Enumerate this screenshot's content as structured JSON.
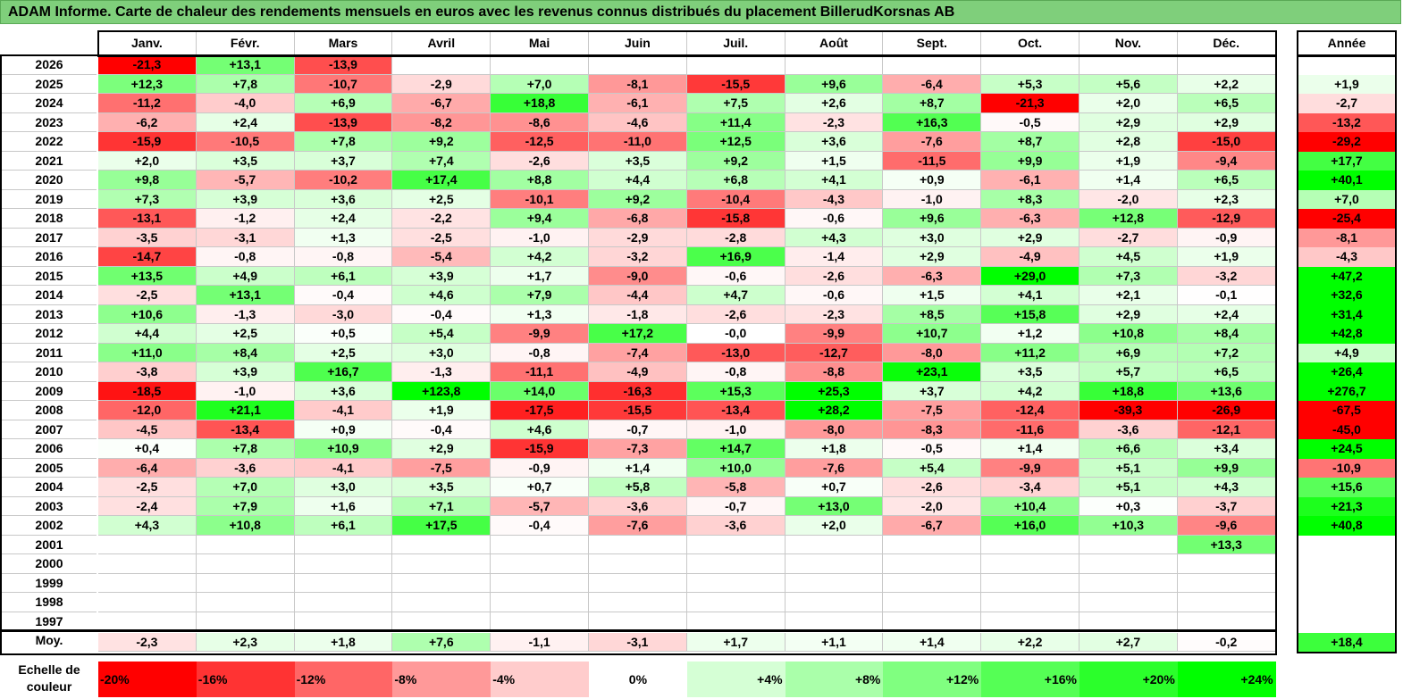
{
  "title": "ADAM Informe. Carte de chaleur des rendements mensuels en euros avec les revenus connus distribués du placement BillerudKorsnas AB",
  "chart_data": {
    "type": "heatmap",
    "months": [
      "Janv.",
      "Févr.",
      "Mars",
      "Avril",
      "Mai",
      "Juin",
      "Juil.",
      "Août",
      "Sept.",
      "Oct.",
      "Nov.",
      "Déc."
    ],
    "year_header": "Année",
    "rows": [
      {
        "year": "2026",
        "values": [
          "-21,3",
          "+13,1",
          "-13,9",
          "",
          "",
          "",
          "",
          "",
          "",
          "",
          "",
          ""
        ],
        "annual": ""
      },
      {
        "year": "2025",
        "values": [
          "+12,3",
          "+7,8",
          "-10,7",
          "-2,9",
          "+7,0",
          "-8,1",
          "-15,5",
          "+9,6",
          "-6,4",
          "+5,3",
          "+5,6",
          "+2,2"
        ],
        "annual": "+1,9"
      },
      {
        "year": "2024",
        "values": [
          "-11,2",
          "-4,0",
          "+6,9",
          "-6,7",
          "+18,8",
          "-6,1",
          "+7,5",
          "+2,6",
          "+8,7",
          "-21,3",
          "+2,0",
          "+6,5"
        ],
        "annual": "-2,7"
      },
      {
        "year": "2023",
        "values": [
          "-6,2",
          "+2,4",
          "-13,9",
          "-8,2",
          "-8,6",
          "-4,6",
          "+11,4",
          "-2,3",
          "+16,3",
          "-0,5",
          "+2,9",
          "+2,9"
        ],
        "annual": "-13,2"
      },
      {
        "year": "2022",
        "values": [
          "-15,9",
          "-10,5",
          "+7,8",
          "+9,2",
          "-12,5",
          "-11,0",
          "+12,5",
          "+3,6",
          "-7,6",
          "+8,7",
          "+2,8",
          "-15,0"
        ],
        "annual": "-29,2"
      },
      {
        "year": "2021",
        "values": [
          "+2,0",
          "+3,5",
          "+3,7",
          "+7,4",
          "-2,6",
          "+3,5",
          "+9,2",
          "+1,5",
          "-11,5",
          "+9,9",
          "+1,9",
          "-9,4"
        ],
        "annual": "+17,7"
      },
      {
        "year": "2020",
        "values": [
          "+9,8",
          "-5,7",
          "-10,2",
          "+17,4",
          "+8,8",
          "+4,4",
          "+6,8",
          "+4,1",
          "+0,9",
          "-6,1",
          "+1,4",
          "+6,5"
        ],
        "annual": "+40,1"
      },
      {
        "year": "2019",
        "values": [
          "+7,3",
          "+3,9",
          "+3,6",
          "+2,5",
          "-10,1",
          "+9,2",
          "-10,4",
          "-4,3",
          "-1,0",
          "+8,3",
          "-2,0",
          "+2,3"
        ],
        "annual": "+7,0"
      },
      {
        "year": "2018",
        "values": [
          "-13,1",
          "-1,2",
          "+2,4",
          "-2,2",
          "+9,4",
          "-6,8",
          "-15,8",
          "-0,6",
          "+9,6",
          "-6,3",
          "+12,8",
          "-12,9"
        ],
        "annual": "-25,4"
      },
      {
        "year": "2017",
        "values": [
          "-3,5",
          "-3,1",
          "+1,3",
          "-2,5",
          "-1,0",
          "-2,9",
          "-2,8",
          "+4,3",
          "+3,0",
          "+2,9",
          "-2,7",
          "-0,9"
        ],
        "annual": "-8,1"
      },
      {
        "year": "2016",
        "values": [
          "-14,7",
          "-0,8",
          "-0,8",
          "-5,4",
          "+4,2",
          "-3,2",
          "+16,9",
          "-1,4",
          "+2,9",
          "-4,9",
          "+4,5",
          "+1,9"
        ],
        "annual": "-4,3"
      },
      {
        "year": "2015",
        "values": [
          "+13,5",
          "+4,9",
          "+6,1",
          "+3,9",
          "+1,7",
          "-9,0",
          "-0,6",
          "-2,6",
          "-6,3",
          "+29,0",
          "+7,3",
          "-3,2"
        ],
        "annual": "+47,2"
      },
      {
        "year": "2014",
        "values": [
          "-2,5",
          "+13,1",
          "-0,4",
          "+4,6",
          "+7,9",
          "-4,4",
          "+4,7",
          "-0,6",
          "+1,5",
          "+4,1",
          "+2,1",
          "-0,1"
        ],
        "annual": "+32,6"
      },
      {
        "year": "2013",
        "values": [
          "+10,6",
          "-1,3",
          "-3,0",
          "-0,4",
          "+1,3",
          "-1,8",
          "-2,6",
          "-2,3",
          "+8,5",
          "+15,8",
          "+2,9",
          "+2,4"
        ],
        "annual": "+31,4"
      },
      {
        "year": "2012",
        "values": [
          "+4,4",
          "+2,5",
          "+0,5",
          "+5,4",
          "-9,9",
          "+17,2",
          "-0,0",
          "-9,9",
          "+10,7",
          "+1,2",
          "+10,8",
          "+8,4"
        ],
        "annual": "+42,8"
      },
      {
        "year": "2011",
        "values": [
          "+11,0",
          "+8,4",
          "+2,5",
          "+3,0",
          "-0,8",
          "-7,4",
          "-13,0",
          "-12,7",
          "-8,0",
          "+11,2",
          "+6,9",
          "+7,2"
        ],
        "annual": "+4,9"
      },
      {
        "year": "2010",
        "values": [
          "-3,8",
          "+3,9",
          "+16,7",
          "-1,3",
          "-11,1",
          "-4,9",
          "-0,8",
          "-8,8",
          "+23,1",
          "+3,5",
          "+5,7",
          "+6,5"
        ],
        "annual": "+26,4"
      },
      {
        "year": "2009",
        "values": [
          "-18,5",
          "-1,0",
          "+3,6",
          "+123,8",
          "+14,0",
          "-16,3",
          "+15,3",
          "+25,3",
          "+3,7",
          "+4,2",
          "+18,8",
          "+13,6"
        ],
        "annual": "+276,7"
      },
      {
        "year": "2008",
        "values": [
          "-12,0",
          "+21,1",
          "-4,1",
          "+1,9",
          "-17,5",
          "-15,5",
          "-13,4",
          "+28,2",
          "-7,5",
          "-12,4",
          "-39,3",
          "-26,9"
        ],
        "annual": "-67,5"
      },
      {
        "year": "2007",
        "values": [
          "-4,5",
          "-13,4",
          "+0,9",
          "-0,4",
          "+4,6",
          "-0,7",
          "-1,0",
          "-8,0",
          "-8,3",
          "-11,6",
          "-3,6",
          "-12,1"
        ],
        "annual": "-45,0"
      },
      {
        "year": "2006",
        "values": [
          "+0,4",
          "+7,8",
          "+10,9",
          "+2,9",
          "-15,9",
          "-7,3",
          "+14,7",
          "+1,8",
          "-0,5",
          "+1,4",
          "+6,6",
          "+3,4"
        ],
        "annual": "+24,5"
      },
      {
        "year": "2005",
        "values": [
          "-6,4",
          "-3,6",
          "-4,1",
          "-7,5",
          "-0,9",
          "+1,4",
          "+10,0",
          "-7,6",
          "+5,4",
          "-9,9",
          "+5,1",
          "+9,9"
        ],
        "annual": "-10,9"
      },
      {
        "year": "2004",
        "values": [
          "-2,5",
          "+7,0",
          "+3,0",
          "+3,5",
          "+0,7",
          "+5,8",
          "-5,8",
          "+0,7",
          "-2,6",
          "-3,4",
          "+5,1",
          "+4,3"
        ],
        "annual": "+15,6"
      },
      {
        "year": "2003",
        "values": [
          "-2,4",
          "+7,9",
          "+1,6",
          "+7,1",
          "-5,7",
          "-3,6",
          "-0,7",
          "+13,0",
          "-2,0",
          "+10,4",
          "+0,3",
          "-3,7"
        ],
        "annual": "+21,3"
      },
      {
        "year": "2002",
        "values": [
          "+4,3",
          "+10,8",
          "+6,1",
          "+17,5",
          "-0,4",
          "-7,6",
          "-3,6",
          "+2,0",
          "-6,7",
          "+16,0",
          "+10,3",
          "-9,6"
        ],
        "annual": "+40,8"
      },
      {
        "year": "2001",
        "values": [
          "",
          "",
          "",
          "",
          "",
          "",
          "",
          "",
          "",
          "",
          "",
          "+13,3"
        ],
        "annual": ""
      },
      {
        "year": "2000",
        "values": [
          "",
          "",
          "",
          "",
          "",
          "",
          "",
          "",
          "",
          "",
          "",
          ""
        ],
        "annual": ""
      },
      {
        "year": "1999",
        "values": [
          "",
          "",
          "",
          "",
          "",
          "",
          "",
          "",
          "",
          "",
          "",
          ""
        ],
        "annual": ""
      },
      {
        "year": "1998",
        "values": [
          "",
          "",
          "",
          "",
          "",
          "",
          "",
          "",
          "",
          "",
          "",
          ""
        ],
        "annual": ""
      },
      {
        "year": "1997",
        "values": [
          "",
          "",
          "",
          "",
          "",
          "",
          "",
          "",
          "",
          "",
          "",
          ""
        ],
        "annual": ""
      }
    ],
    "average": {
      "label": "Moy.",
      "values": [
        "-2,3",
        "+2,3",
        "+1,8",
        "+7,6",
        "-1,1",
        "-3,1",
        "+1,7",
        "+1,1",
        "+1,4",
        "+2,2",
        "+2,7",
        "-0,2"
      ],
      "annual": "+18,4"
    },
    "color_scale": {
      "label": "Echelle de couleur",
      "stops": [
        "-20%",
        "-16%",
        "-12%",
        "-8%",
        "-4%",
        "0%",
        "+4%",
        "+8%",
        "+12%",
        "+16%",
        "+20%",
        "+24%"
      ],
      "negative_color": "#ff0000",
      "positive_color": "#00ff00",
      "neutral_color": "#ffffff"
    }
  }
}
